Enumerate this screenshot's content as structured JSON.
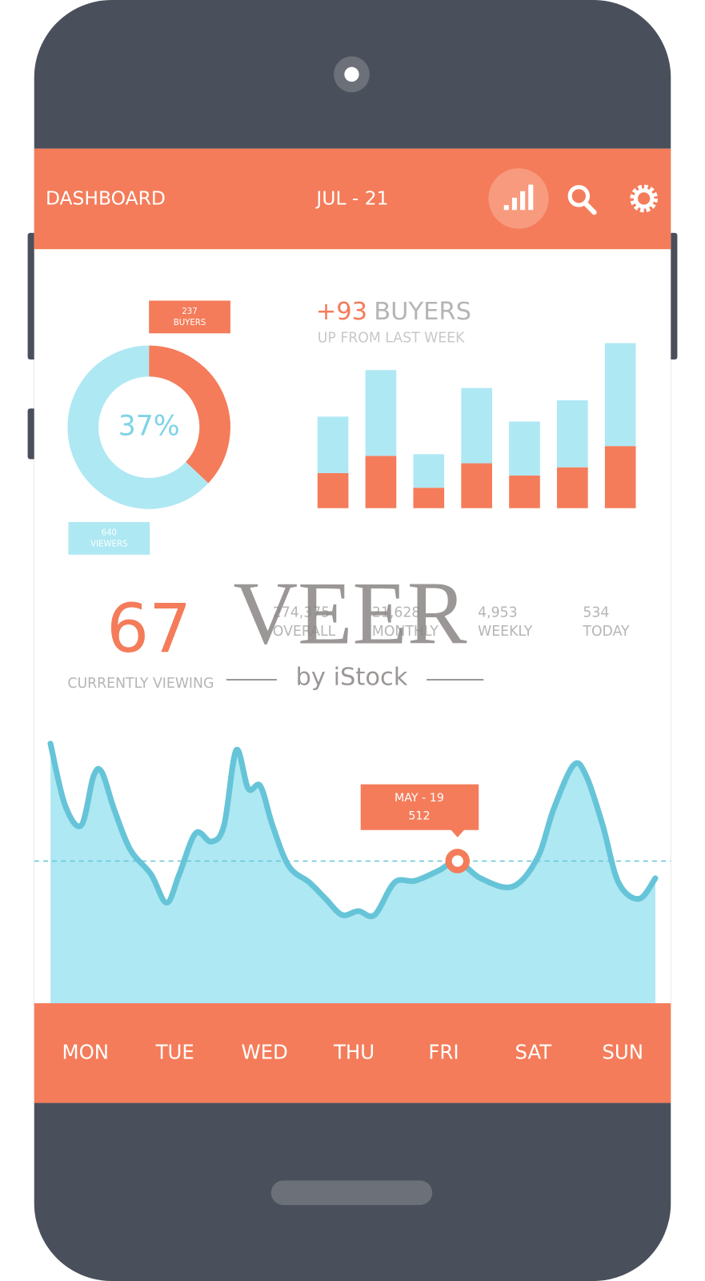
{
  "header": {
    "title": "DASHBOARD",
    "date": "JUL - 21"
  },
  "stats": {
    "current": {
      "value": "67",
      "label": "CURRENTLY VIEWING"
    },
    "totals": [
      {
        "value": "274,375",
        "label": "OVERALL"
      },
      {
        "value": "21,628",
        "label": "MONTHLY"
      },
      {
        "value": "4,953",
        "label": "WEEKLY"
      },
      {
        "value": "534",
        "label": "TODAY"
      }
    ]
  },
  "days": [
    "MON",
    "TUE",
    "WED",
    "THU",
    "FRI",
    "SAT",
    "SUN"
  ],
  "watermark": {
    "brand": "VEER",
    "by": "by iStock"
  },
  "chart_data": [
    {
      "type": "pie",
      "donut": true,
      "series": [
        {
          "name": "BUYERS",
          "color": "#f47c5a",
          "values": [
            37
          ]
        },
        {
          "name": "VIEWERS",
          "color": "#aee8f3",
          "values": [
            63
          ]
        }
      ],
      "center_label": "37%",
      "center_color": "#7fd3e6",
      "tags": [
        {
          "value": "237",
          "text": "BUYERS"
        },
        {
          "value": "640",
          "text": "VIEWERS"
        }
      ]
    },
    {
      "type": "stacked-bar",
      "headline": {
        "value": "+93",
        "text": "BUYERS"
      },
      "subtitle": "UP FROM LAST WEEK",
      "ylim": [
        0,
        202
      ],
      "series": [
        {
          "color": "#f47c5a",
          "values": [
            43,
            64,
            25,
            55,
            40,
            50,
            76
          ]
        },
        {
          "color": "#aee8f3",
          "values": [
            69,
            105,
            41,
            92,
            66,
            82,
            126
          ]
        }
      ]
    },
    {
      "type": "area",
      "xlim": [
        0,
        100
      ],
      "ylim": [
        0,
        965
      ],
      "line_color": "#66c4d8",
      "fill_color": "#aee8f3",
      "x": [
        0,
        2.4,
        5.1,
        7.1,
        8.5,
        10.5,
        13.2,
        16.6,
        19.2,
        21.3,
        24.0,
        26.6,
        28.7,
        30.7,
        32.7,
        34.7,
        36.7,
        39.4,
        42.8,
        45.5,
        48.2,
        50.9,
        53.6,
        56.9,
        60.3,
        64.3,
        67.3,
        71.1,
        76.4,
        80.5,
        83.2,
        86.5,
        88.6,
        91.3,
        93.9,
        97.3,
        100
      ],
      "values": [
        935,
        714,
        641,
        817,
        832,
        700,
        553,
        465,
        362,
        465,
        612,
        582,
        641,
        911,
        773,
        782,
        641,
        494,
        435,
        376,
        318,
        332,
        318,
        435,
        441,
        479,
        512,
        450,
        420,
        523,
        700,
        858,
        817,
        641,
        435,
        376,
        450
      ],
      "highlight": {
        "index": 26,
        "label": "MAY - 19",
        "value_label": "512",
        "color": "#f47c5a"
      }
    }
  ]
}
